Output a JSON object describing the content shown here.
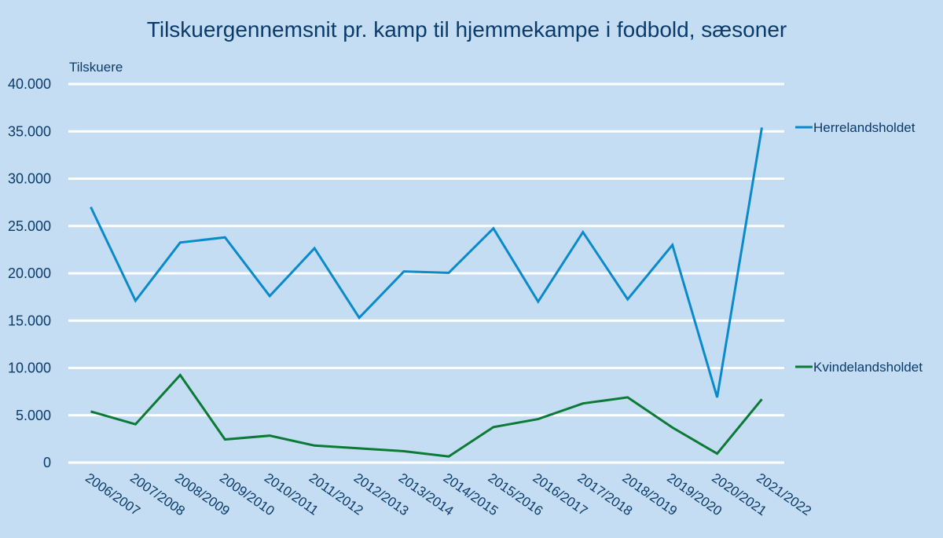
{
  "chart_data": {
    "type": "line",
    "title": "Tilskuergennemsnit pr. kamp til hjemmekampe i fodbold, sæsoner",
    "xlabel": "",
    "ylabel": "Tilskuere",
    "ylim": [
      0,
      40000
    ],
    "yticks": [
      0,
      5000,
      10000,
      15000,
      20000,
      25000,
      30000,
      35000,
      40000
    ],
    "ytick_labels": [
      "0",
      "5.000",
      "10.000",
      "15.000",
      "20.000",
      "25.000",
      "30.000",
      "35.000",
      "40.000"
    ],
    "grid": true,
    "legend_position": "right",
    "categories": [
      "2006/2007",
      "2007/2008",
      "2008/2009",
      "2009/2010",
      "2010/2011",
      "2011/2012",
      "2012/2013",
      "2013/2014",
      "2014/2015",
      "2015/2016",
      "2016/2017",
      "2017/2018",
      "2018/2019",
      "2019/2020",
      "2020/2021",
      "2021/2022"
    ],
    "series": [
      {
        "name": "Herrelandsholdet",
        "color": "#0A8ACB",
        "values": [
          27000,
          17100,
          23250,
          23800,
          17600,
          22650,
          15300,
          20200,
          20050,
          24750,
          17000,
          24350,
          17250,
          23000,
          6900,
          35400
        ]
      },
      {
        "name": "Kvindelandsholdet",
        "color": "#0A7A35",
        "values": [
          5400,
          4050,
          9250,
          2450,
          2850,
          1800,
          1500,
          1200,
          650,
          3750,
          4600,
          6250,
          6900,
          3700,
          950,
          6700
        ]
      }
    ]
  },
  "colors": {
    "background": "#C4DDF3",
    "text": "#0B3B6B",
    "grid": "#FFFFFF"
  }
}
